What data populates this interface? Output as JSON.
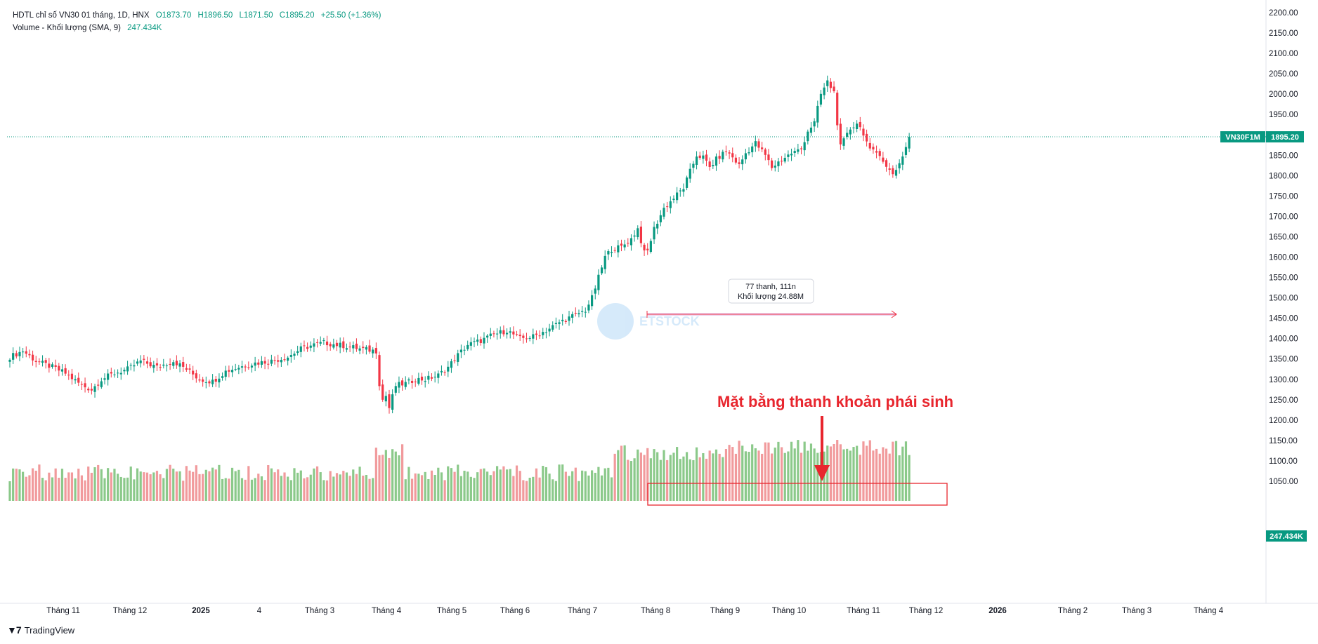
{
  "legend": {
    "title": "HDTL chỉ số VN30 01 tháng, 1D, HNX",
    "open": "O1873.70",
    "high": "H1896.50",
    "low": "L1871.50",
    "close": "C1895.20",
    "change": "+25.50 (+1.36%)",
    "volume_title": "Volume - Khối lượng (SMA, 9)",
    "volume_value": "247.434K"
  },
  "brand": "TradingView",
  "colors": {
    "up": "#089981",
    "down": "#f23645",
    "vol_up": "#8bc98a",
    "vol_down": "#f19a9c",
    "price_tag": "#089981",
    "annotation": "#e8262e",
    "measure": "#f23645"
  },
  "chart_data": {
    "type": "candlestick",
    "symbol_tag": "VN30F1M",
    "last_price": 1895.2,
    "last_price_label": "1895.20",
    "volume_tag": "247.434K",
    "y_axis": {
      "min": 1000,
      "max": 2200,
      "ticks": [
        1050,
        1100,
        1150,
        1200,
        1250,
        1300,
        1350,
        1400,
        1450,
        1500,
        1550,
        1600,
        1650,
        1700,
        1750,
        1800,
        1850,
        1900,
        1950,
        2000,
        2050,
        2100,
        2150,
        2200
      ],
      "tick_labels": [
        "1050.00",
        "1100.00",
        "1150.00",
        "1200.00",
        "1250.00",
        "1300.00",
        "1350.00",
        "1400.00",
        "1450.00",
        "1500.00",
        "1550.00",
        "1600.00",
        "1650.00",
        "1700.00",
        "1750.00",
        "1800.00",
        "1850.00",
        "1900.00",
        "1950.00",
        "2000.00",
        "2050.00",
        "2100.00",
        "2150.00",
        "2200.00"
      ]
    },
    "x_axis": {
      "labels": [
        "Tháng 11",
        "Tháng 12",
        "2025",
        "4",
        "Tháng 3",
        "Tháng 4",
        "Tháng 5",
        "Tháng 6",
        "Tháng 7",
        "Tháng 8",
        "Tháng 9",
        "Tháng 10",
        "Tháng 11",
        "Tháng 12",
        "2026",
        "Tháng 2",
        "Tháng 3",
        "Tháng 4"
      ],
      "bold": [
        "2025",
        "2026"
      ]
    },
    "price_anchors": [
      [
        0,
        1355
      ],
      [
        4,
        1370
      ],
      [
        8,
        1345
      ],
      [
        13,
        1330
      ],
      [
        17,
        1315
      ],
      [
        22,
        1285
      ],
      [
        25,
        1275
      ],
      [
        28,
        1300
      ],
      [
        32,
        1315
      ],
      [
        36,
        1325
      ],
      [
        40,
        1345
      ],
      [
        45,
        1330
      ],
      [
        50,
        1345
      ],
      [
        54,
        1325
      ],
      [
        58,
        1300
      ],
      [
        62,
        1295
      ],
      [
        66,
        1320
      ],
      [
        70,
        1330
      ],
      [
        75,
        1340
      ],
      [
        80,
        1345
      ],
      [
        85,
        1355
      ],
      [
        89,
        1375
      ],
      [
        93,
        1385
      ],
      [
        96,
        1390
      ],
      [
        100,
        1385
      ],
      [
        104,
        1380
      ],
      [
        107,
        1375
      ],
      [
        112,
        1370
      ],
      [
        113,
        1290
      ],
      [
        114,
        1250
      ],
      [
        115,
        1260
      ],
      [
        116,
        1230
      ],
      [
        118,
        1285
      ],
      [
        121,
        1290
      ],
      [
        124,
        1300
      ],
      [
        127,
        1300
      ],
      [
        131,
        1310
      ],
      [
        134,
        1330
      ],
      [
        137,
        1360
      ],
      [
        140,
        1385
      ],
      [
        144,
        1395
      ],
      [
        148,
        1410
      ],
      [
        152,
        1420
      ],
      [
        156,
        1400
      ],
      [
        160,
        1405
      ],
      [
        164,
        1420
      ],
      [
        168,
        1440
      ],
      [
        172,
        1455
      ],
      [
        176,
        1470
      ],
      [
        178,
        1500
      ],
      [
        180,
        1550
      ],
      [
        182,
        1600
      ],
      [
        184,
        1620
      ],
      [
        187,
        1625
      ],
      [
        190,
        1645
      ],
      [
        192,
        1670
      ],
      [
        193,
        1640
      ],
      [
        194,
        1610
      ],
      [
        195,
        1615
      ],
      [
        197,
        1670
      ],
      [
        200,
        1720
      ],
      [
        203,
        1745
      ],
      [
        206,
        1770
      ],
      [
        208,
        1810
      ],
      [
        210,
        1850
      ],
      [
        212,
        1845
      ],
      [
        214,
        1820
      ],
      [
        216,
        1840
      ],
      [
        219,
        1860
      ],
      [
        221,
        1845
      ],
      [
        223,
        1825
      ],
      [
        225,
        1855
      ],
      [
        228,
        1880
      ],
      [
        231,
        1850
      ],
      [
        233,
        1820
      ],
      [
        236,
        1840
      ],
      [
        239,
        1855
      ],
      [
        242,
        1865
      ],
      [
        244,
        1910
      ],
      [
        246,
        1930
      ],
      [
        248,
        2000
      ],
      [
        250,
        2030
      ],
      [
        252,
        2005
      ],
      [
        253,
        1930
      ],
      [
        254,
        1870
      ],
      [
        257,
        1915
      ],
      [
        259,
        1930
      ],
      [
        261,
        1905
      ],
      [
        263,
        1860
      ],
      [
        266,
        1855
      ],
      [
        268,
        1820
      ],
      [
        270,
        1805
      ],
      [
        272,
        1830
      ],
      [
        274,
        1870
      ],
      [
        275,
        1895.2
      ]
    ],
    "volume_axis_max": 250000,
    "volume_note": "Daily volume bars colored by candle direction; elevated activity from August onward.",
    "annotations": {
      "measure_label_1": "77 thanh, 111n",
      "measure_label_2": "Khối lượng 24.88M",
      "highlight_text": "Mặt bằng thanh khoản phái sinh",
      "watermark": "ETSTOCK"
    }
  }
}
